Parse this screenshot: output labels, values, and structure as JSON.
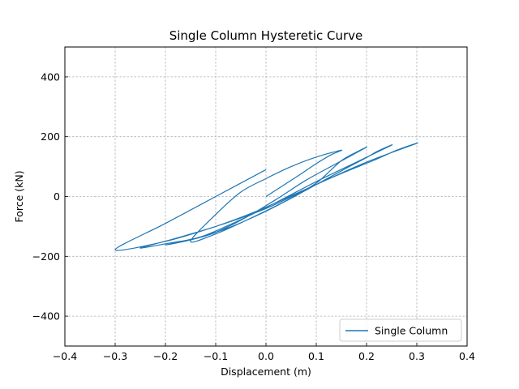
{
  "chart_data": {
    "type": "line",
    "title": "Single Column Hysteretic Curve",
    "xlabel": "Displacement (m)",
    "ylabel": "Force (kN)",
    "xlim": [
      -0.4,
      0.4
    ],
    "ylim": [
      -500,
      500
    ],
    "xticks": [
      -0.4,
      -0.3,
      -0.2,
      -0.1,
      0.0,
      0.1,
      0.2,
      0.3,
      0.4
    ],
    "xtick_labels": [
      "−0.4",
      "−0.3",
      "−0.2",
      "−0.1",
      "0.0",
      "0.1",
      "0.2",
      "0.3",
      "0.4"
    ],
    "yticks": [
      -400,
      -200,
      0,
      200,
      400
    ],
    "ytick_labels": [
      "−400",
      "−200",
      "0",
      "200",
      "400"
    ],
    "grid": true,
    "legend_position": "bottom-right",
    "colors": {
      "series": "#1f77b4",
      "grid": "#b0b0b0"
    },
    "series": [
      {
        "name": "Single Column",
        "x": [
          0.0,
          0.06,
          0.1,
          0.13,
          0.15,
          0.1,
          0.05,
          0.0,
          -0.05,
          -0.1,
          -0.15,
          -0.1,
          -0.05,
          0.0,
          0.05,
          0.1,
          0.13,
          0.15,
          0.17,
          0.2,
          0.14,
          0.08,
          0.02,
          -0.04,
          -0.1,
          -0.15,
          -0.2,
          -0.14,
          -0.08,
          -0.02,
          0.04,
          0.1,
          0.16,
          0.2,
          0.22,
          0.25,
          0.18,
          0.1,
          0.02,
          -0.06,
          -0.13,
          -0.2,
          -0.25,
          -0.18,
          -0.1,
          -0.02,
          0.06,
          0.14,
          0.22,
          0.26,
          0.3,
          0.2,
          0.1,
          0.0,
          -0.1,
          -0.2,
          -0.3,
          -0.2,
          -0.1,
          0.0
        ],
        "y": [
          0.0,
          65.0,
          110.0,
          140.0,
          155.0,
          132.0,
          100.0,
          60.0,
          15.0,
          -60.0,
          -150.0,
          -125.0,
          -88.0,
          -48.0,
          -5.0,
          45.0,
          90.0,
          120.0,
          140.0,
          165.0,
          110.0,
          55.0,
          -10.0,
          -70.0,
          -120.0,
          -145.0,
          -162.0,
          -140.0,
          -108.0,
          -65.0,
          -15.0,
          40.0,
          95.0,
          130.0,
          150.0,
          172.0,
          115.0,
          50.0,
          -20.0,
          -85.0,
          -135.0,
          -158.0,
          -172.0,
          -140.0,
          -100.0,
          -50.0,
          10.0,
          70.0,
          125.0,
          155.0,
          178.0,
          115.0,
          40.0,
          -40.0,
          -100.0,
          -150.0,
          -178.0,
          -90.0,
          0.0,
          90.0
        ]
      }
    ]
  }
}
